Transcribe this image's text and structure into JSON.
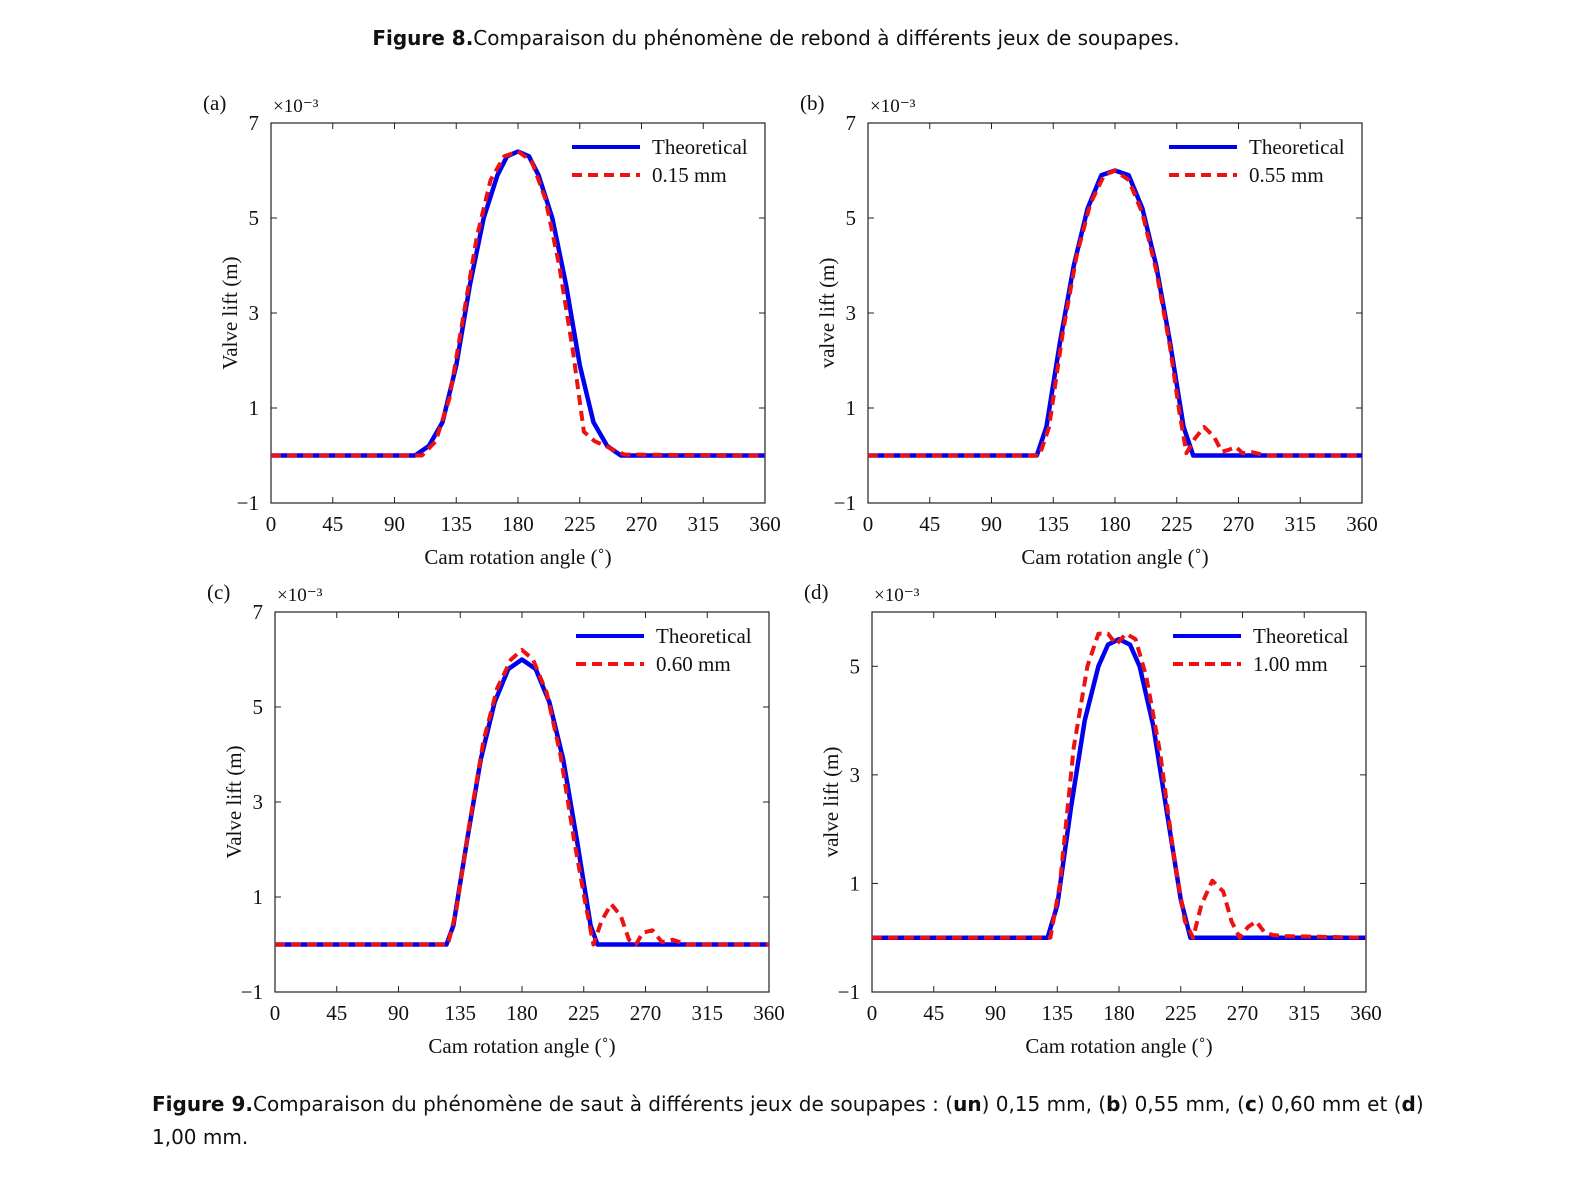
{
  "figure8_caption": {
    "label": "Figure 8.",
    "text": "Comparaison du phénomène de rebond à différents jeux de soupapes."
  },
  "figure9_caption": {
    "label": "Figure 9.",
    "t1": "Comparaison du phénomène de saut à différents jeux de soupapes : (",
    "a": "un",
    "t2": ") 0,15 mm, (",
    "b": "b",
    "t3": ") 0,55 mm, (",
    "c": "c",
    "t4": ") 0,60 mm et (",
    "d": "d",
    "t5": ") 1,00 mm."
  },
  "colors": {
    "theoretical": "#0000ee",
    "measured": "#ee1111"
  },
  "chart_data": [
    {
      "type": "line",
      "panel_label": "(a)",
      "multiplier": "×10⁻³",
      "xlabel": "Cam rotation angle (˚)",
      "ylabel": "Valve lift (m)",
      "xlim": [
        0,
        360
      ],
      "ylim": [
        -1,
        7
      ],
      "xticks": [
        0,
        45,
        90,
        135,
        180,
        225,
        270,
        315,
        360
      ],
      "yticks": [
        -1,
        1,
        3,
        5,
        7
      ],
      "legend_position": "top-right",
      "series": [
        {
          "name": "Theoretical",
          "style": "solid",
          "x": [
            0,
            105,
            115,
            125,
            135,
            145,
            155,
            165,
            172,
            180,
            188,
            195,
            205,
            215,
            225,
            235,
            245,
            255,
            360
          ],
          "y": [
            0,
            0,
            0.2,
            0.7,
            1.9,
            3.6,
            5.0,
            5.9,
            6.3,
            6.4,
            6.3,
            5.9,
            5.0,
            3.6,
            1.9,
            0.7,
            0.2,
            0,
            0
          ]
        },
        {
          "name": "0.15 mm",
          "style": "dashed",
          "x": [
            0,
            110,
            120,
            130,
            140,
            150,
            160,
            170,
            180,
            190,
            200,
            210,
            220,
            228,
            236,
            244,
            252,
            258,
            360
          ],
          "y": [
            0,
            0,
            0.3,
            1.2,
            2.9,
            4.6,
            5.8,
            6.3,
            6.4,
            6.2,
            5.4,
            4.0,
            2.2,
            0.5,
            0.3,
            0.2,
            0.08,
            0.02,
            0
          ]
        }
      ]
    },
    {
      "type": "line",
      "panel_label": "(b)",
      "multiplier": "×10⁻³",
      "xlabel": "Cam rotation angle (˚)",
      "ylabel": "valve lift (m)",
      "xlim": [
        0,
        360
      ],
      "ylim": [
        -1,
        7
      ],
      "xticks": [
        0,
        45,
        90,
        135,
        180,
        225,
        270,
        315,
        360
      ],
      "yticks": [
        -1,
        1,
        3,
        5,
        7
      ],
      "legend_position": "top-right",
      "series": [
        {
          "name": "Theoretical",
          "style": "solid",
          "x": [
            0,
            123,
            130,
            140,
            150,
            160,
            170,
            180,
            190,
            200,
            210,
            220,
            230,
            237,
            360
          ],
          "y": [
            0,
            0,
            0.6,
            2.4,
            4.0,
            5.2,
            5.9,
            6.0,
            5.9,
            5.2,
            4.0,
            2.4,
            0.6,
            0,
            0
          ]
        },
        {
          "name": "0.55 mm",
          "style": "dashed",
          "x": [
            0,
            125,
            132,
            142,
            152,
            162,
            172,
            180,
            190,
            200,
            210,
            220,
            227,
            232,
            238,
            245,
            252,
            258,
            263,
            268,
            273,
            280,
            290,
            360
          ],
          "y": [
            0,
            0,
            0.6,
            2.6,
            4.2,
            5.3,
            5.9,
            6.0,
            5.8,
            5.1,
            3.9,
            2.3,
            0.9,
            0.05,
            0.35,
            0.6,
            0.4,
            0.08,
            0.12,
            0.18,
            0.05,
            0.07,
            0,
            0
          ]
        }
      ]
    },
    {
      "type": "line",
      "panel_label": "(c)",
      "multiplier": "×10⁻³",
      "xlabel": "Cam rotation angle (˚)",
      "ylabel": "Valve lift (m)",
      "xlim": [
        0,
        360
      ],
      "ylim": [
        -1,
        7
      ],
      "xticks": [
        0,
        45,
        90,
        135,
        180,
        225,
        270,
        315,
        360
      ],
      "yticks": [
        -1,
        1,
        3,
        5,
        7
      ],
      "legend_position": "top-right",
      "series": [
        {
          "name": "Theoretical",
          "style": "solid",
          "x": [
            0,
            125,
            130,
            140,
            150,
            160,
            170,
            180,
            190,
            200,
            210,
            220,
            230,
            235,
            360
          ],
          "y": [
            0,
            0,
            0.4,
            2.2,
            3.9,
            5.1,
            5.8,
            6.0,
            5.8,
            5.1,
            3.9,
            2.2,
            0.4,
            0,
            0
          ]
        },
        {
          "name": "0.60 mm",
          "style": "dashed",
          "x": [
            0,
            126,
            132,
            142,
            152,
            162,
            172,
            180,
            188,
            198,
            208,
            218,
            226,
            232,
            238,
            245,
            252,
            258,
            263,
            268,
            275,
            282,
            290,
            300,
            360
          ],
          "y": [
            0,
            0,
            0.7,
            2.6,
            4.3,
            5.4,
            6.0,
            6.2,
            6.0,
            5.3,
            4.0,
            2.2,
            0.9,
            0.0,
            0.5,
            0.85,
            0.6,
            0.1,
            0.0,
            0.25,
            0.3,
            0.05,
            0.1,
            0,
            0
          ]
        }
      ]
    },
    {
      "type": "line",
      "panel_label": "(d)",
      "multiplier": "×10⁻³",
      "xlabel": "Cam rotation angle (˚)",
      "ylabel": "valve lift (m)",
      "xlim": [
        0,
        360
      ],
      "ylim": [
        -1,
        6
      ],
      "xticks": [
        0,
        45,
        90,
        135,
        180,
        225,
        270,
        315,
        360
      ],
      "yticks": [
        -1,
        1,
        3,
        5
      ],
      "legend_position": "top-right",
      "series": [
        {
          "name": "Theoretical",
          "style": "solid",
          "x": [
            0,
            128,
            135,
            145,
            155,
            165,
            172,
            180,
            188,
            195,
            205,
            215,
            225,
            232,
            360
          ],
          "y": [
            0,
            0,
            0.6,
            2.4,
            4.0,
            5.0,
            5.4,
            5.5,
            5.4,
            5.0,
            3.9,
            2.3,
            0.7,
            0,
            0
          ]
        },
        {
          "name": "1.00 mm",
          "style": "dashed",
          "x": [
            0,
            130,
            137,
            147,
            157,
            165,
            172,
            178,
            185,
            192,
            200,
            210,
            220,
            228,
            234,
            240,
            248,
            256,
            262,
            268,
            274,
            280,
            286,
            292,
            300,
            360
          ],
          "y": [
            0,
            0,
            1.0,
            3.5,
            5.0,
            5.6,
            5.6,
            5.4,
            5.6,
            5.5,
            4.8,
            3.4,
            1.5,
            0.3,
            0.0,
            0.6,
            1.05,
            0.85,
            0.3,
            0.0,
            0.2,
            0.3,
            0.1,
            0.05,
            0.03,
            0
          ]
        }
      ]
    }
  ]
}
